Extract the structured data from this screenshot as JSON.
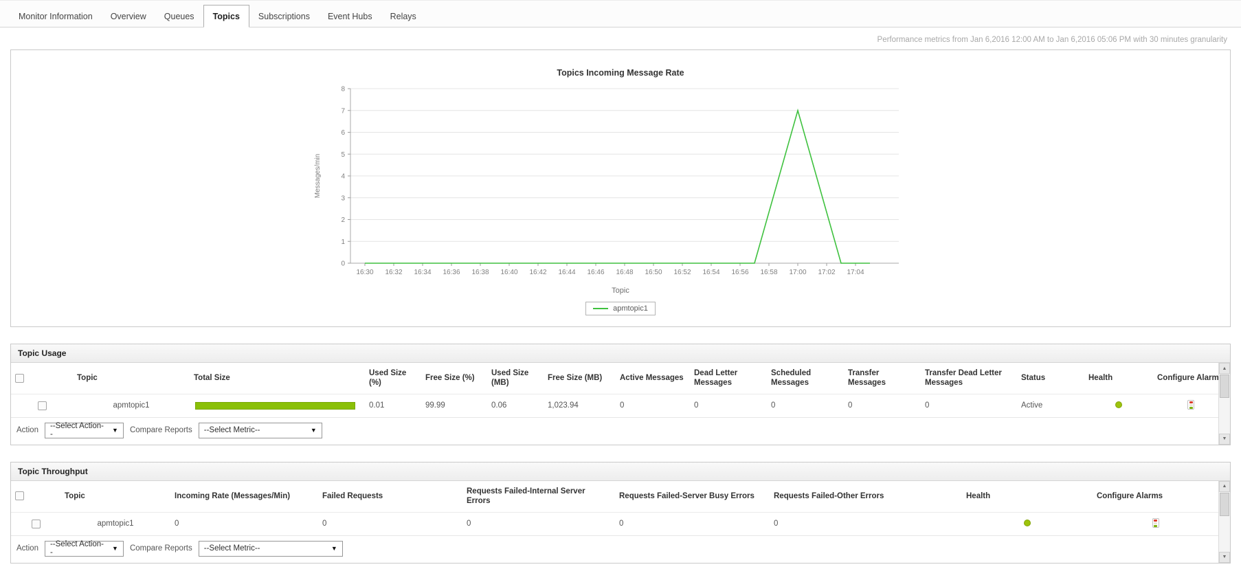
{
  "tabs": [
    {
      "label": "Monitor Information",
      "active": false
    },
    {
      "label": "Overview",
      "active": false
    },
    {
      "label": "Queues",
      "active": false
    },
    {
      "label": "Topics",
      "active": true
    },
    {
      "label": "Subscriptions",
      "active": false
    },
    {
      "label": "Event Hubs",
      "active": false
    },
    {
      "label": "Relays",
      "active": false
    }
  ],
  "meta": {
    "performance_text": "Performance metrics from Jan 6,2016 12:00 AM to Jan 6,2016 05:06 PM with 30 minutes granularity"
  },
  "colors": {
    "chart_line": "#3ec13e",
    "size_bar_fill": "#8ac007",
    "health_ok": "#9dc30c"
  },
  "chart_data": {
    "type": "line",
    "title": "Topics Incoming Message Rate",
    "xlabel": "Topic",
    "ylabel": "Messages/min",
    "ylim": [
      0,
      8
    ],
    "yticks": [
      0,
      1,
      2,
      3,
      4,
      5,
      6,
      7,
      8
    ],
    "x_domain": [
      "16:29",
      "17:07"
    ],
    "xticks": [
      "16:30",
      "16:32",
      "16:34",
      "16:36",
      "16:38",
      "16:40",
      "16:42",
      "16:44",
      "16:46",
      "16:48",
      "16:50",
      "16:52",
      "16:54",
      "16:56",
      "16:58",
      "17:00",
      "17:02",
      "17:04"
    ],
    "grid": "horizontal",
    "legend_position": "bottom",
    "series": [
      {
        "name": "apmtopic1",
        "color": "#3ec13e",
        "points": [
          [
            "16:30",
            0
          ],
          [
            "16:32",
            0
          ],
          [
            "16:34",
            0
          ],
          [
            "16:36",
            0
          ],
          [
            "16:38",
            0
          ],
          [
            "16:40",
            0
          ],
          [
            "16:42",
            0
          ],
          [
            "16:44",
            0
          ],
          [
            "16:46",
            0
          ],
          [
            "16:48",
            0
          ],
          [
            "16:50",
            0
          ],
          [
            "16:52",
            0
          ],
          [
            "16:54",
            0
          ],
          [
            "16:56",
            0
          ],
          [
            "16:57",
            0
          ],
          [
            "17:00",
            7
          ],
          [
            "17:03",
            0
          ],
          [
            "17:05",
            0
          ]
        ]
      }
    ]
  },
  "usage": {
    "title": "Topic Usage",
    "columns": [
      "Topic",
      "Total Size",
      "Used Size (%)",
      "Free Size (%)",
      "Used Size (MB)",
      "Free Size (MB)",
      "Active Messages",
      "Dead Letter Messages",
      "Scheduled Messages",
      "Transfer Messages",
      "Transfer Dead Letter Messages",
      "Status",
      "Health",
      "Configure Alarms"
    ],
    "rows": [
      {
        "topic": "apmtopic1",
        "total_size_fill_pct": 100,
        "used_size_pct": "0.01",
        "free_size_pct": "99.99",
        "used_size_mb": "0.06",
        "free_size_mb": "1,023.94",
        "active_messages": "0",
        "dead_letter_messages": "0",
        "scheduled_messages": "0",
        "transfer_messages": "0",
        "transfer_dead_letter_messages": "0",
        "status": "Active",
        "health": "green"
      }
    ],
    "action_label": "Action",
    "action_value": "--Select Action--",
    "compare_label": "Compare Reports",
    "compare_value": "--Select Metric--"
  },
  "throughput": {
    "title": "Topic Throughput",
    "columns": [
      "Topic",
      "Incoming Rate  (Messages/Min)",
      "Failed Requests",
      "Requests Failed-Internal Server Errors",
      "Requests Failed-Server Busy Errors",
      "Requests Failed-Other Errors",
      "Health",
      "Configure Alarms"
    ],
    "rows": [
      {
        "topic": "apmtopic1",
        "incoming_rate": "0",
        "failed_requests": "0",
        "internal_server_errors": "0",
        "server_busy_errors": "0",
        "other_errors": "0",
        "health": "green"
      }
    ],
    "action_label": "Action",
    "action_value": "--Select Action--",
    "compare_label": "Compare Reports",
    "compare_value": "--Select Metric--"
  }
}
